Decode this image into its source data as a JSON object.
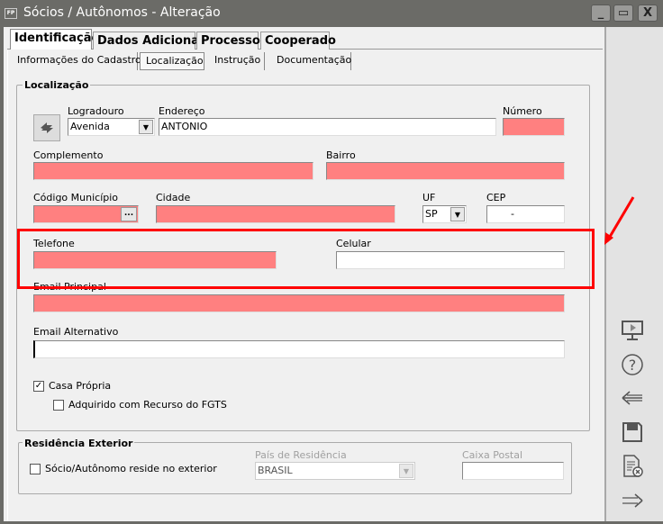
{
  "window": {
    "title": "Sócios / Autônomos - Alteração",
    "icon_label": "FP",
    "minimize": "_",
    "maximize": "▭",
    "close": "X"
  },
  "main_tabs": [
    {
      "label": "Identificação",
      "selected": true
    },
    {
      "label": "Dados Adicionais"
    },
    {
      "label": "Processos"
    },
    {
      "label": "Cooperado"
    }
  ],
  "sub_tabs": [
    {
      "label": "Informações do Cadastro"
    },
    {
      "label": "Localização",
      "selected": true
    },
    {
      "label": "Instrução"
    },
    {
      "label": "Documentação"
    }
  ],
  "localizacao": {
    "legend": "Localização",
    "logradouro": {
      "label": "Logradouro",
      "value": "Avenida"
    },
    "endereco": {
      "label": "Endereço",
      "value": "ANTONIO"
    },
    "numero": {
      "label": "Número",
      "value": ""
    },
    "complemento": {
      "label": "Complemento",
      "value": ""
    },
    "bairro": {
      "label": "Bairro",
      "value": ""
    },
    "codigo_municipio": {
      "label": "Código Município",
      "value": "",
      "button": "..."
    },
    "cidade": {
      "label": "Cidade",
      "value": ""
    },
    "uf": {
      "label": "UF",
      "value": "SP"
    },
    "cep": {
      "label": "CEP",
      "value": "    -"
    },
    "telefone": {
      "label": "Telefone",
      "value": ""
    },
    "celular": {
      "label": "Celular",
      "value": ""
    },
    "email_principal": {
      "label": "Email Principal",
      "value": ""
    },
    "email_alternativo": {
      "label": "Email Alternativo",
      "value": ""
    },
    "casa_propria": {
      "label": "Casa Própria",
      "checked": true
    },
    "fgts": {
      "label": "Adquirido com Recurso do FGTS",
      "checked": false
    }
  },
  "residencia_exterior": {
    "legend": "Residência Exterior",
    "reside_exterior": {
      "label": "Sócio/Autônomo reside no exterior",
      "checked": false
    },
    "pais": {
      "label": "País de Residência",
      "value": "BRASIL"
    },
    "caixa_postal": {
      "label": "Caixa Postal",
      "value": ""
    }
  },
  "colors": {
    "required_field": "#ff8080",
    "annotation": "#ff0000"
  },
  "side_toolbar": [
    "monitor-play-icon",
    "help-icon",
    "back-arrow-icon",
    "save-icon",
    "cancel-document-icon",
    "forward-arrow-icon"
  ]
}
